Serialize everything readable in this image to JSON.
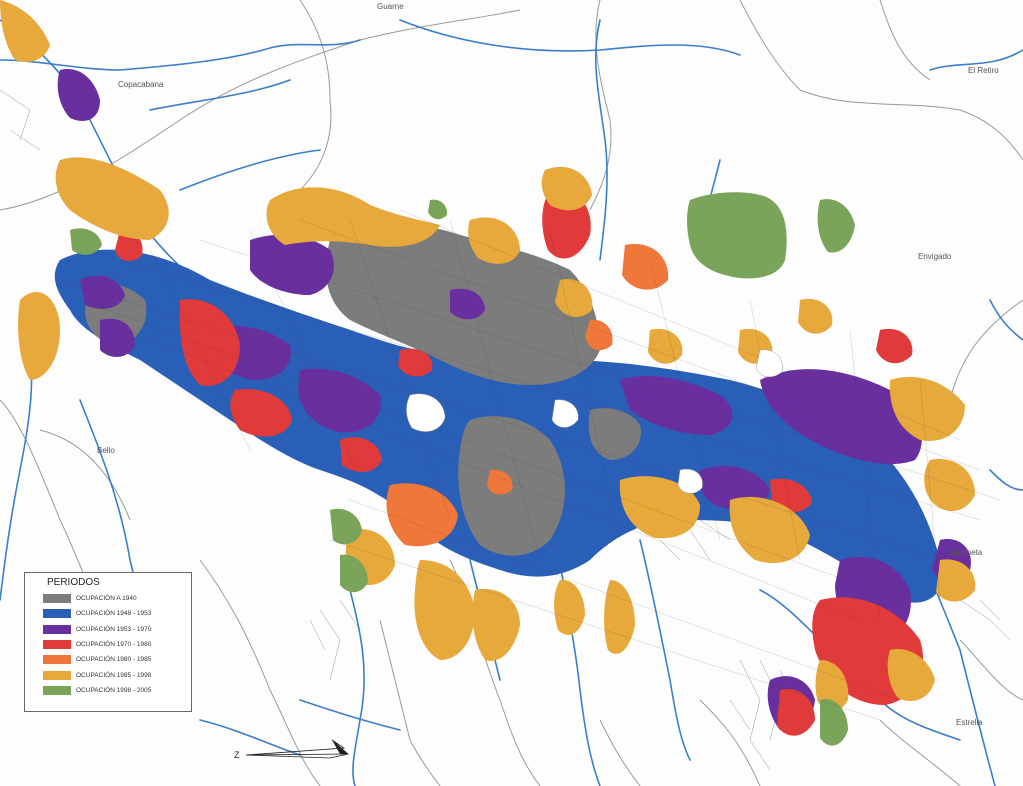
{
  "map": {
    "places": [
      {
        "id": "guarne",
        "name": "Guarne"
      },
      {
        "id": "copacabana",
        "name": "Copacabana"
      },
      {
        "id": "el-retiro",
        "name": "El Retiro"
      },
      {
        "id": "envigado",
        "name": "Envigado"
      },
      {
        "id": "bello",
        "name": "Bello"
      },
      {
        "id": "sabaneta",
        "name": "Sabaneta"
      },
      {
        "id": "estrella",
        "name": "Estrella"
      }
    ],
    "legend": {
      "title": "PERIODOS",
      "items": [
        {
          "label": "OCUPACIÓN A 1940",
          "color": "#7c7c7c"
        },
        {
          "label": "OCUPACIÓN 1948 - 1953",
          "color": "#2a5fb8"
        },
        {
          "label": "OCUPACIÓN 1953 - 1970",
          "color": "#6a2f9e"
        },
        {
          "label": "OCUPACIÓN 1970 - 1980",
          "color": "#e03a3a"
        },
        {
          "label": "OCUPACIÓN 1980 - 1985",
          "color": "#f0773a"
        },
        {
          "label": "OCUPACIÓN 1985 - 1998",
          "color": "#e7a93c"
        },
        {
          "label": "OCUPACIÓN 1998 - 2005",
          "color": "#7aa45a"
        }
      ]
    },
    "north_arrow": {
      "label": "Z"
    },
    "colors": {
      "river": "#3a7fc9",
      "background": "#fdfdfd",
      "border_line": "#999999"
    }
  }
}
